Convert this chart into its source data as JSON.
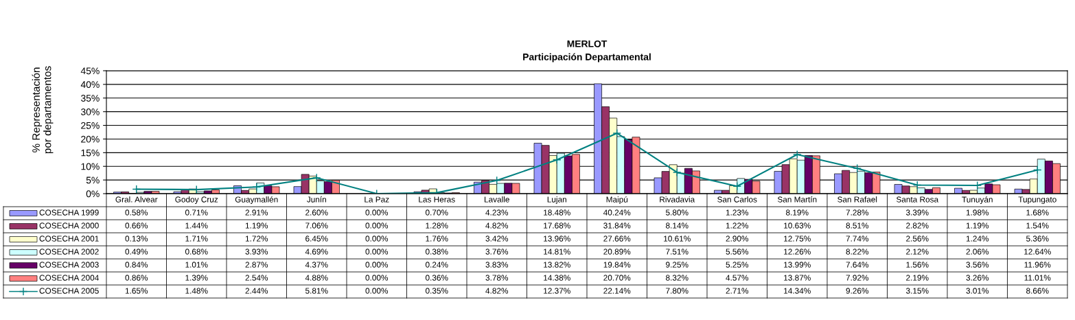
{
  "chart_data": {
    "type": "bar",
    "title": "MERLOT",
    "subtitle": "Participación Departamental",
    "ylabel": "% Representación\npor departamentos",
    "categories": [
      "Gral. Alvear",
      "Godoy Cruz",
      "Guaymallén",
      "Junín",
      "La Paz",
      "Las Heras",
      "Lavalle",
      "Lujan",
      "Maipú",
      "Rivadavia",
      "San Carlos",
      "San Martín",
      "San Rafael",
      "Santa Rosa",
      "Tunuyán",
      "Tupungato"
    ],
    "series": [
      {
        "name": "COSECHA 1999",
        "color": "#9999ff",
        "values": [
          0.58,
          0.71,
          2.91,
          2.6,
          0.0,
          0.7,
          4.23,
          18.48,
          40.24,
          5.8,
          1.23,
          8.19,
          7.28,
          3.39,
          1.98,
          1.68
        ],
        "value_labels": [
          "0.58%",
          "0.71%",
          "2.91%",
          "2.60%",
          "0.00%",
          "0.70%",
          "4.23%",
          "18.48%",
          "40.24%",
          "5.80%",
          "1.23%",
          "8.19%",
          "7.28%",
          "3.39%",
          "1.98%",
          "1.68%"
        ]
      },
      {
        "name": "COSECHA 2000",
        "color": "#993366",
        "values": [
          0.66,
          1.44,
          1.19,
          7.06,
          0.0,
          1.28,
          4.82,
          17.68,
          31.84,
          8.14,
          1.22,
          10.63,
          8.51,
          2.82,
          1.19,
          1.54
        ],
        "value_labels": [
          "0.66%",
          "1.44%",
          "1.19%",
          "7.06%",
          "0.00%",
          "1.28%",
          "4.82%",
          "17.68%",
          "31.84%",
          "8.14%",
          "1.22%",
          "10.63%",
          "8.51%",
          "2.82%",
          "1.19%",
          "1.54%"
        ]
      },
      {
        "name": "COSECHA 2001",
        "color": "#ffffcc",
        "values": [
          0.13,
          1.71,
          1.72,
          6.45,
          0.0,
          1.76,
          3.42,
          13.96,
          27.66,
          10.61,
          2.9,
          12.75,
          7.74,
          2.56,
          1.24,
          5.36
        ],
        "value_labels": [
          "0.13%",
          "1.71%",
          "1.72%",
          "6.45%",
          "0.00%",
          "1.76%",
          "3.42%",
          "13.96%",
          "27.66%",
          "10.61%",
          "2.90%",
          "12.75%",
          "7.74%",
          "2.56%",
          "1.24%",
          "5.36%"
        ]
      },
      {
        "name": "COSECHA 2002",
        "color": "#ccffff",
        "values": [
          0.49,
          0.68,
          3.93,
          4.69,
          0.0,
          0.38,
          3.76,
          14.81,
          20.89,
          7.51,
          5.56,
          12.26,
          8.22,
          2.12,
          2.06,
          12.64
        ],
        "value_labels": [
          "0.49%",
          "0.68%",
          "3.93%",
          "4.69%",
          "0.00%",
          "0.38%",
          "3.76%",
          "14.81%",
          "20.89%",
          "7.51%",
          "5.56%",
          "12.26%",
          "8.22%",
          "2.12%",
          "2.06%",
          "12.64%"
        ]
      },
      {
        "name": "COSECHA 2003",
        "color": "#660066",
        "values": [
          0.84,
          1.01,
          2.87,
          4.37,
          0.0,
          0.24,
          3.83,
          13.82,
          19.84,
          9.25,
          5.25,
          13.99,
          7.64,
          1.56,
          3.56,
          11.96
        ],
        "value_labels": [
          "0.84%",
          "1.01%",
          "2.87%",
          "4.37%",
          "0.00%",
          "0.24%",
          "3.83%",
          "13.82%",
          "19.84%",
          "9.25%",
          "5.25%",
          "13.99%",
          "7.64%",
          "1.56%",
          "3.56%",
          "11.96%"
        ]
      },
      {
        "name": "COSECHA 2004",
        "color": "#ff8080",
        "values": [
          0.86,
          1.39,
          2.54,
          4.88,
          0.0,
          0.36,
          3.78,
          14.38,
          20.7,
          8.32,
          4.57,
          13.87,
          7.92,
          2.19,
          3.26,
          11.01
        ],
        "value_labels": [
          "0.86%",
          "1.39%",
          "2.54%",
          "4.88%",
          "0.00%",
          "0.36%",
          "3.78%",
          "14.38%",
          "20.70%",
          "8.32%",
          "4.57%",
          "13.87%",
          "7.92%",
          "2.19%",
          "3.26%",
          "11.01%"
        ]
      },
      {
        "name": "COSECHA 2005",
        "type": "line",
        "marker": "cross",
        "color": "#008080",
        "values": [
          1.65,
          1.48,
          2.44,
          5.81,
          0.0,
          0.35,
          4.82,
          12.37,
          22.14,
          7.8,
          2.71,
          14.34,
          9.26,
          3.15,
          3.01,
          8.66
        ],
        "value_labels": [
          "1.65%",
          "1.48%",
          "2.44%",
          "5.81%",
          "0.00%",
          "0.35%",
          "4.82%",
          "12.37%",
          "22.14%",
          "7.80%",
          "2.71%",
          "14.34%",
          "9.26%",
          "3.15%",
          "3.01%",
          "8.66%"
        ]
      }
    ],
    "ylim": [
      0,
      45
    ],
    "yticks": [
      {
        "value": 0,
        "label": "0%"
      },
      {
        "value": 5,
        "label": "5%"
      },
      {
        "value": 10,
        "label": "10%"
      },
      {
        "value": 15,
        "label": "15%"
      },
      {
        "value": 20,
        "label": "20%"
      },
      {
        "value": 25,
        "label": "25%"
      },
      {
        "value": 30,
        "label": "30%"
      },
      {
        "value": 35,
        "label": "35%"
      },
      {
        "value": 40,
        "label": "40%"
      },
      {
        "value": 45,
        "label": "45%"
      }
    ],
    "grid": "y",
    "legend": "bottom"
  }
}
